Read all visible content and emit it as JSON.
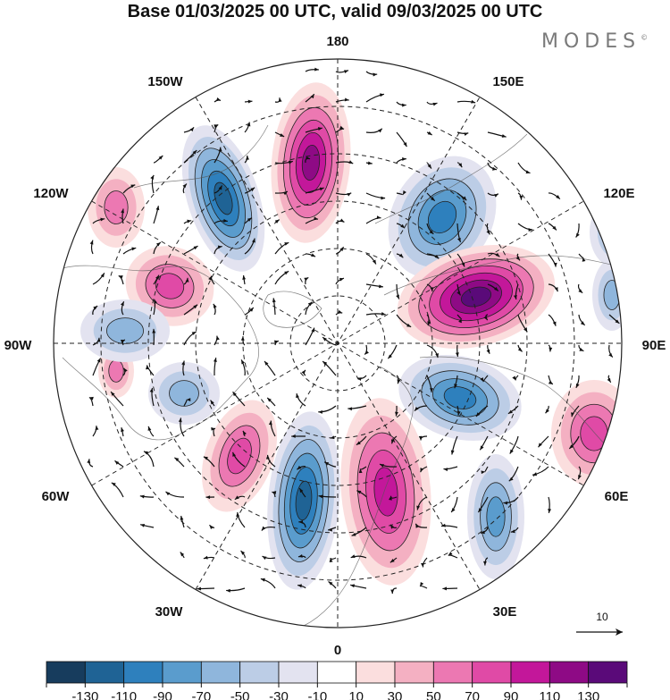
{
  "title": "Base 01/03/2025 00 UTC, valid 09/03/2025 00 UTC",
  "brand": {
    "name": "MODES",
    "mark": "©"
  },
  "longitude_labels": {
    "n180": "180",
    "w150": "150W",
    "e150": "150E",
    "w120": "120W",
    "e120": "120E",
    "w90": "90W",
    "e90": "90E",
    "w60": "60W",
    "e60": "60E",
    "w30": "30W",
    "e30": "30E",
    "n0": "0"
  },
  "reference_vector": {
    "label": "10"
  },
  "colorbar": {
    "ticks": [
      "-130",
      "-110",
      "-90",
      "-70",
      "-50",
      "-30",
      "-10",
      "10",
      "30",
      "50",
      "70",
      "90",
      "110",
      "130"
    ],
    "colors": [
      "#173c5d",
      "#1f6395",
      "#2e80bd",
      "#5a9ccd",
      "#8fb6dc",
      "#bccde6",
      "#e3e3f0",
      "#ffffff",
      "#fbdede",
      "#f4b0c2",
      "#ec78b2",
      "#e04aa6",
      "#c3179a",
      "#8e0a85",
      "#5a0a79"
    ]
  },
  "anomaly_centers": [
    {
      "sign": "negative",
      "level": 5
    },
    {
      "sign": "positive",
      "level": 5
    },
    {
      "sign": "negative",
      "level": 4
    },
    {
      "sign": "positive",
      "level": 6
    },
    {
      "sign": "positive",
      "level": 3
    },
    {
      "sign": "negative",
      "level": 4
    },
    {
      "sign": "positive",
      "level": 3
    },
    {
      "sign": "negative",
      "level": 5
    },
    {
      "sign": "positive",
      "level": 4
    },
    {
      "sign": "negative",
      "level": 3
    },
    {
      "sign": "positive",
      "level": 3
    },
    {
      "sign": "negative",
      "level": 2
    },
    {
      "sign": "positive",
      "level": 2
    },
    {
      "sign": "negative",
      "level": 2
    },
    {
      "sign": "negative",
      "level": 2
    },
    {
      "sign": "positive",
      "level": 2
    },
    {
      "sign": "negative",
      "level": 2
    }
  ]
}
